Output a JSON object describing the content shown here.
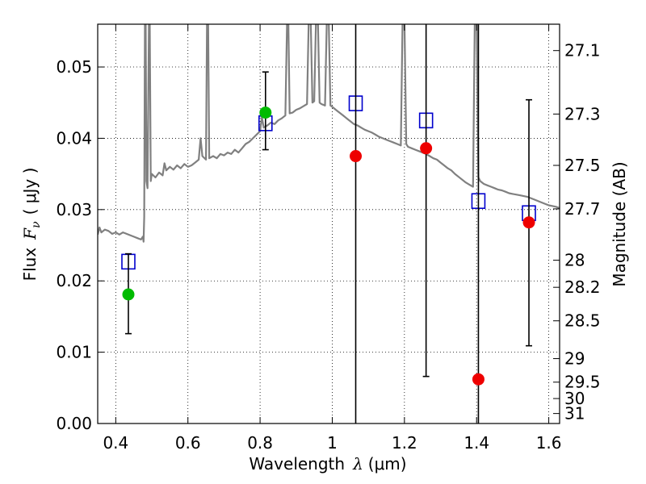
{
  "chart_data": {
    "type": "scatter",
    "xlabel": "Wavelength",
    "xlabel_symbol": "λ",
    "xlabel_unit": "(μm)",
    "ylabel": "Flux",
    "ylabel_symbol": "F",
    "ylabel_subscript": "ν",
    "ylabel_unit": "( μJy )",
    "ylabel_right": "Magnitude (AB)",
    "xlim": [
      0.35,
      1.63
    ],
    "ylim": [
      0.0,
      0.056
    ],
    "grid": true,
    "x_ticks": [
      0.4,
      0.6,
      0.8,
      1.0,
      1.2,
      1.4,
      1.6
    ],
    "x_tick_labels": [
      "0.4",
      "0.6",
      "0.8",
      "1",
      "1.2",
      "1.4",
      "1.6"
    ],
    "y_ticks": [
      0.0,
      0.01,
      0.02,
      0.03,
      0.04,
      0.05
    ],
    "y_tick_labels": [
      "0.00",
      "0.01",
      "0.02",
      "0.03",
      "0.04",
      "0.05"
    ],
    "right_ticks": [
      {
        "flux": 0.0523,
        "label": "27.1"
      },
      {
        "flux": 0.0434,
        "label": "27.3"
      },
      {
        "flux": 0.0362,
        "label": "27.5"
      },
      {
        "flux": 0.0301,
        "label": "27.7"
      },
      {
        "flux": 0.0229,
        "label": "28"
      },
      {
        "flux": 0.0191,
        "label": "28.2"
      },
      {
        "flux": 0.0144,
        "label": "28.5"
      },
      {
        "flux": 0.0091,
        "label": "29"
      },
      {
        "flux": 0.0058,
        "label": "29.5"
      },
      {
        "flux": 0.0035,
        "label": "30"
      },
      {
        "flux": 0.0014,
        "label": "31"
      }
    ],
    "model_spectrum": {
      "color": "#808080",
      "points": [
        [
          0.35,
          0.0265
        ],
        [
          0.355,
          0.0275
        ],
        [
          0.36,
          0.0268
        ],
        [
          0.37,
          0.0272
        ],
        [
          0.38,
          0.027
        ],
        [
          0.39,
          0.0266
        ],
        [
          0.4,
          0.0268
        ],
        [
          0.41,
          0.0265
        ],
        [
          0.42,
          0.0268
        ],
        [
          0.43,
          0.0266
        ],
        [
          0.44,
          0.0264
        ],
        [
          0.45,
          0.0262
        ],
        [
          0.46,
          0.026
        ],
        [
          0.47,
          0.0258
        ],
        [
          0.475,
          0.0262
        ],
        [
          0.477,
          0.0255
        ],
        [
          0.479,
          0.029
        ],
        [
          0.481,
          0.057
        ],
        [
          0.483,
          0.057
        ],
        [
          0.485,
          0.034
        ],
        [
          0.488,
          0.033
        ],
        [
          0.492,
          0.057
        ],
        [
          0.494,
          0.057
        ],
        [
          0.497,
          0.034
        ],
        [
          0.5,
          0.035
        ],
        [
          0.51,
          0.0345
        ],
        [
          0.52,
          0.0352
        ],
        [
          0.53,
          0.0348
        ],
        [
          0.535,
          0.0365
        ],
        [
          0.54,
          0.0355
        ],
        [
          0.55,
          0.036
        ],
        [
          0.56,
          0.0356
        ],
        [
          0.57,
          0.0362
        ],
        [
          0.58,
          0.0358
        ],
        [
          0.59,
          0.0364
        ],
        [
          0.6,
          0.036
        ],
        [
          0.61,
          0.0362
        ],
        [
          0.62,
          0.0366
        ],
        [
          0.63,
          0.037
        ],
        [
          0.635,
          0.04
        ],
        [
          0.64,
          0.0375
        ],
        [
          0.65,
          0.037
        ],
        [
          0.653,
          0.057
        ],
        [
          0.656,
          0.057
        ],
        [
          0.659,
          0.0372
        ],
        [
          0.67,
          0.0375
        ],
        [
          0.68,
          0.0372
        ],
        [
          0.69,
          0.0378
        ],
        [
          0.7,
          0.0376
        ],
        [
          0.71,
          0.038
        ],
        [
          0.72,
          0.0378
        ],
        [
          0.73,
          0.0384
        ],
        [
          0.74,
          0.038
        ],
        [
          0.75,
          0.0386
        ],
        [
          0.76,
          0.0392
        ],
        [
          0.77,
          0.0395
        ],
        [
          0.78,
          0.04
        ],
        [
          0.79,
          0.0405
        ],
        [
          0.8,
          0.041
        ],
        [
          0.805,
          0.043
        ],
        [
          0.81,
          0.0415
        ],
        [
          0.82,
          0.0418
        ],
        [
          0.83,
          0.0422
        ],
        [
          0.84,
          0.042
        ],
        [
          0.85,
          0.0425
        ],
        [
          0.86,
          0.0428
        ],
        [
          0.87,
          0.0432
        ],
        [
          0.875,
          0.057
        ],
        [
          0.878,
          0.057
        ],
        [
          0.882,
          0.0435
        ],
        [
          0.89,
          0.0436
        ],
        [
          0.9,
          0.044
        ],
        [
          0.91,
          0.0442
        ],
        [
          0.92,
          0.0445
        ],
        [
          0.93,
          0.0448
        ],
        [
          0.935,
          0.057
        ],
        [
          0.94,
          0.057
        ],
        [
          0.945,
          0.045
        ],
        [
          0.95,
          0.0452
        ],
        [
          0.955,
          0.057
        ],
        [
          0.96,
          0.057
        ],
        [
          0.965,
          0.045
        ],
        [
          0.97,
          0.0448
        ],
        [
          0.98,
          0.0446
        ],
        [
          0.985,
          0.057
        ],
        [
          0.99,
          0.057
        ],
        [
          0.995,
          0.0446
        ],
        [
          1.0,
          0.0444
        ],
        [
          1.01,
          0.044
        ],
        [
          1.02,
          0.0436
        ],
        [
          1.03,
          0.0432
        ],
        [
          1.04,
          0.0428
        ],
        [
          1.05,
          0.0424
        ],
        [
          1.06,
          0.042
        ],
        [
          1.07,
          0.0418
        ],
        [
          1.08,
          0.0415
        ],
        [
          1.09,
          0.0412
        ],
        [
          1.1,
          0.041
        ],
        [
          1.11,
          0.0408
        ],
        [
          1.12,
          0.0405
        ],
        [
          1.13,
          0.0402
        ],
        [
          1.14,
          0.04
        ],
        [
          1.15,
          0.0398
        ],
        [
          1.16,
          0.0396
        ],
        [
          1.17,
          0.0394
        ],
        [
          1.18,
          0.0392
        ],
        [
          1.19,
          0.039
        ],
        [
          1.195,
          0.057
        ],
        [
          1.2,
          0.057
        ],
        [
          1.205,
          0.0392
        ],
        [
          1.21,
          0.0388
        ],
        [
          1.22,
          0.0386
        ],
        [
          1.23,
          0.0384
        ],
        [
          1.24,
          0.0382
        ],
        [
          1.25,
          0.038
        ],
        [
          1.26,
          0.0378
        ],
        [
          1.27,
          0.0375
        ],
        [
          1.28,
          0.0372
        ],
        [
          1.29,
          0.037
        ],
        [
          1.3,
          0.0366
        ],
        [
          1.31,
          0.0362
        ],
        [
          1.32,
          0.0358
        ],
        [
          1.33,
          0.0355
        ],
        [
          1.34,
          0.035
        ],
        [
          1.35,
          0.0346
        ],
        [
          1.36,
          0.0342
        ],
        [
          1.37,
          0.0338
        ],
        [
          1.38,
          0.0335
        ],
        [
          1.39,
          0.0332
        ],
        [
          1.395,
          0.057
        ],
        [
          1.4,
          0.057
        ],
        [
          1.405,
          0.0345
        ],
        [
          1.41,
          0.034
        ],
        [
          1.42,
          0.0336
        ],
        [
          1.43,
          0.0334
        ],
        [
          1.44,
          0.0332
        ],
        [
          1.45,
          0.033
        ],
        [
          1.46,
          0.0328
        ],
        [
          1.47,
          0.0327
        ],
        [
          1.48,
          0.0325
        ],
        [
          1.49,
          0.0323
        ],
        [
          1.5,
          0.0322
        ],
        [
          1.52,
          0.032
        ],
        [
          1.54,
          0.0318
        ],
        [
          1.56,
          0.0314
        ],
        [
          1.58,
          0.031
        ],
        [
          1.6,
          0.0306
        ],
        [
          1.62,
          0.0304
        ],
        [
          1.63,
          0.0302
        ]
      ]
    },
    "series": [
      {
        "marker": "square-open",
        "color": "#0000cc",
        "points": [
          [
            0.435,
            0.0227
          ],
          [
            0.815,
            0.0421
          ],
          [
            1.065,
            0.0449
          ],
          [
            1.26,
            0.0425
          ],
          [
            1.405,
            0.0312
          ],
          [
            1.545,
            0.0295
          ]
        ]
      },
      {
        "marker": "circle",
        "color": "#00bb00",
        "points": [
          [
            0.435,
            0.0181,
            0.0126,
            0.0238
          ],
          [
            0.815,
            0.0436,
            0.0384,
            0.0493
          ]
        ]
      },
      {
        "marker": "circle",
        "color": "#ee0000",
        "points": [
          [
            1.065,
            0.0375,
            0.0,
            0.058
          ],
          [
            1.26,
            0.0386,
            0.0066,
            0.058
          ],
          [
            1.405,
            0.0062,
            0.0,
            0.058
          ],
          [
            1.545,
            0.0282,
            0.0109,
            0.0454
          ]
        ]
      }
    ]
  }
}
